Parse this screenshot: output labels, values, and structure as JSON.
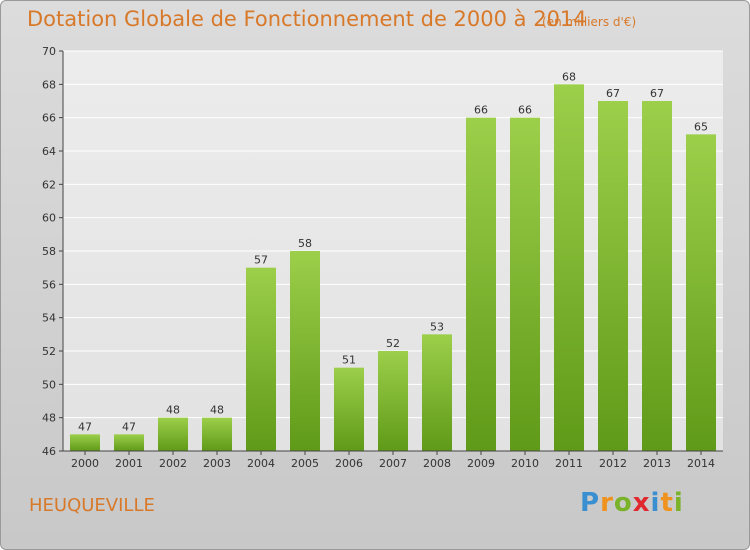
{
  "title": "Dotation Globale de Fonctionnement de 2000 à 2014",
  "subtitle": "(en milliers d'€)",
  "commune": "HEUQUEVILLE",
  "logo": {
    "letters": [
      "P",
      "r",
      "o",
      "x",
      "i",
      "t",
      "i"
    ],
    "colors": [
      "#3a8fd1",
      "#f0921e",
      "#7ab32a",
      "#e0282e",
      "#3a8fd1",
      "#f0921e",
      "#7ab32a"
    ]
  },
  "colors": {
    "bar": "#7bb62c",
    "text": "#d8792a"
  },
  "chart_data": {
    "type": "bar",
    "categories": [
      "2000",
      "2001",
      "2002",
      "2003",
      "2004",
      "2005",
      "2006",
      "2007",
      "2008",
      "2009",
      "2010",
      "2011",
      "2012",
      "2013",
      "2014"
    ],
    "values": [
      47,
      47,
      48,
      48,
      57,
      58,
      51,
      52,
      53,
      66,
      66,
      68,
      67,
      67,
      65
    ],
    "ylim": [
      46,
      70
    ],
    "yticks": [
      46,
      48,
      50,
      52,
      54,
      56,
      58,
      60,
      62,
      64,
      66,
      68,
      70
    ],
    "grid": true
  }
}
